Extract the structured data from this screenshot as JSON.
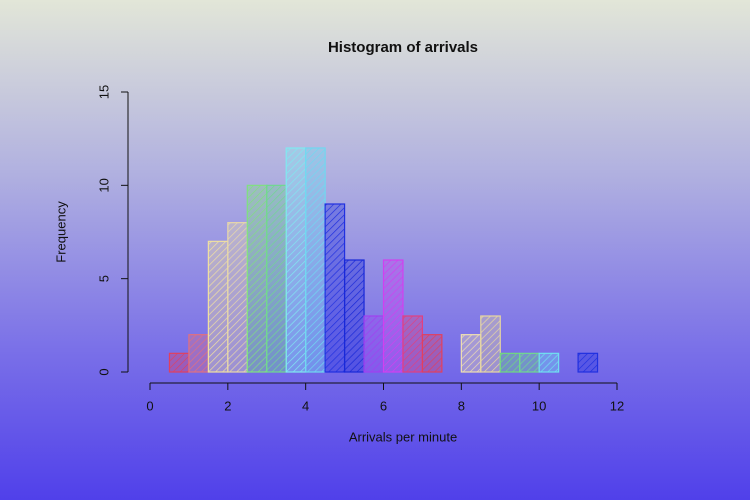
{
  "chart_data": {
    "type": "histogram",
    "title": "Histogram of arrivals",
    "x_label": "Arrivals per minute",
    "y_label": "Frequency",
    "bins": [
      0.5,
      1,
      1.5,
      2,
      2.5,
      3,
      3.5,
      4,
      4.5,
      5,
      5.5,
      6,
      6.5,
      7,
      7.5,
      8,
      8.5,
      9,
      9.5,
      10,
      10.5,
      11,
      11.5
    ],
    "counts": [
      1,
      2,
      7,
      8,
      10,
      10,
      12,
      12,
      9,
      6,
      3,
      6,
      3,
      2,
      0,
      2,
      3,
      1,
      1,
      1,
      0,
      1
    ],
    "colors": [
      "#e04060",
      "#e07080",
      "#f0e0a0",
      "#e8d8a8",
      "#80e080",
      "#70d890",
      "#80e8f0",
      "#70d8f0",
      "#2030e0",
      "#1828d8",
      "#a040f0",
      "#d040f0",
      "#e04080",
      "#e04060",
      "#e06070",
      "#f0e0b0",
      "#e8d8a0",
      "#70d880",
      "#70d890",
      "#70e0f0",
      "#80e0f0",
      "#2030e0"
    ],
    "xlim": [
      0,
      12
    ],
    "xticks": [
      0,
      2,
      4,
      6,
      8,
      10,
      12
    ],
    "ylim": [
      0,
      15
    ],
    "yticks": [
      0,
      5,
      10,
      15
    ]
  }
}
